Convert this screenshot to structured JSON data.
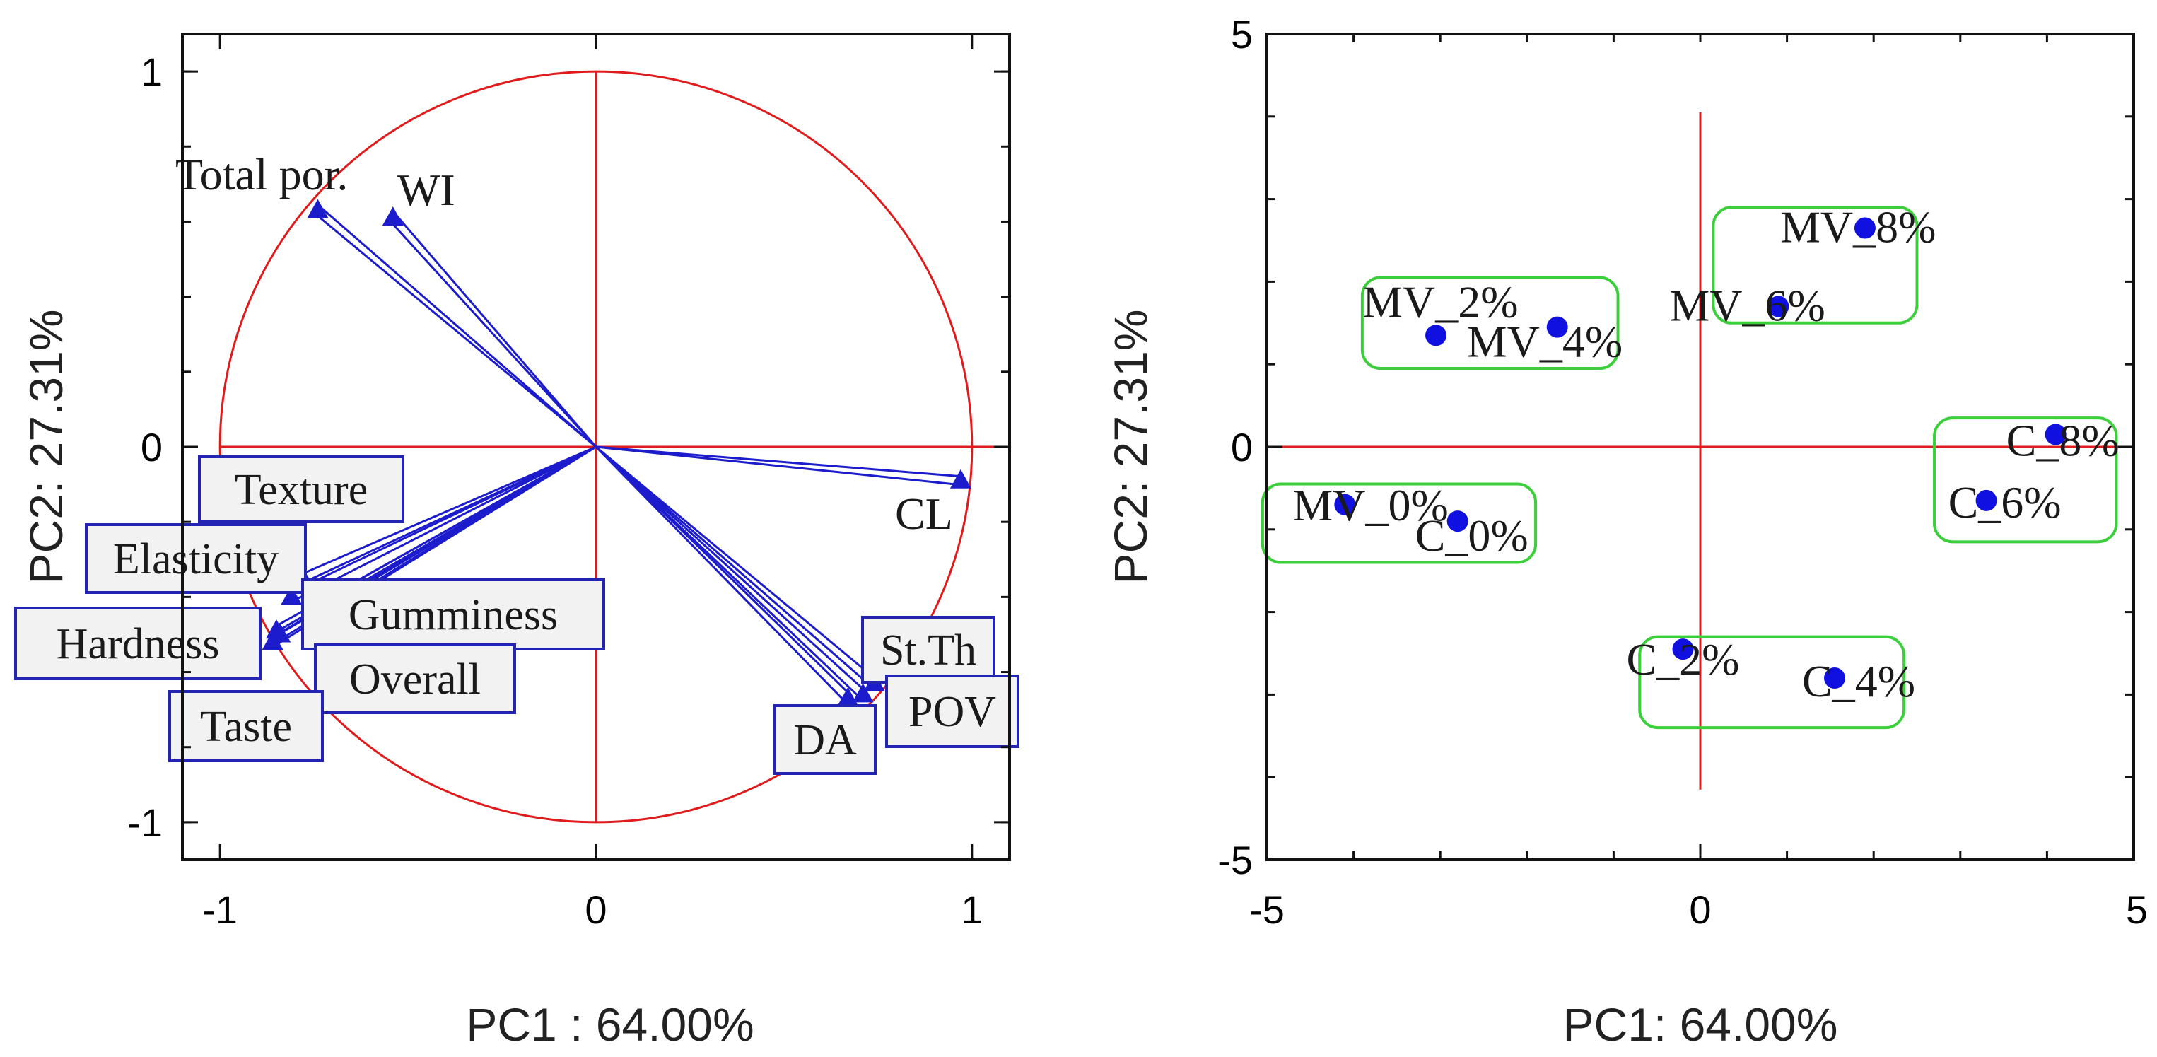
{
  "chart_data": [
    {
      "type": "scatter",
      "subtype": "pca-loadings",
      "title": "",
      "xlabel": "PC1 : 64.00%",
      "ylabel": "PC2: 27.31%",
      "xlim": [
        -1.1,
        1.1
      ],
      "ylim": [
        -1.1,
        1.1
      ],
      "xticks": [
        -1,
        0,
        1
      ],
      "yticks": [
        -1,
        0,
        1
      ],
      "unit_circle": true,
      "colors": {
        "axis": "#111111",
        "circle": "#e01b1b",
        "zero_lines": "#e01b1b",
        "vectors": "#1c1ccc",
        "box_fill": "#f2f2f2",
        "box_border": "#2323b4"
      },
      "loadings": [
        {
          "name": "Total por.",
          "x": -0.74,
          "y": 0.63,
          "label_style": "plain"
        },
        {
          "name": "WI",
          "x": -0.54,
          "y": 0.61,
          "label_style": "plain"
        },
        {
          "name": "CL",
          "x": 0.97,
          "y": -0.09,
          "label_style": "plain"
        },
        {
          "name": "St.Th",
          "x": 0.74,
          "y": -0.63,
          "label_style": "box"
        },
        {
          "name": "POV",
          "x": 0.71,
          "y": -0.66,
          "label_style": "box"
        },
        {
          "name": "DA",
          "x": 0.67,
          "y": -0.67,
          "label_style": "box"
        },
        {
          "name": "Texture",
          "x": -0.78,
          "y": -0.35,
          "label_style": "box"
        },
        {
          "name": "Elasticity",
          "x": -0.81,
          "y": -0.4,
          "label_style": "box"
        },
        {
          "name": "Gumminess",
          "x": -0.76,
          "y": -0.44,
          "label_style": "box"
        },
        {
          "name": "Hardness",
          "x": -0.85,
          "y": -0.49,
          "label_style": "box"
        },
        {
          "name": "Overall",
          "x": -0.84,
          "y": -0.5,
          "label_style": "box"
        },
        {
          "name": "Taste",
          "x": -0.86,
          "y": -0.52,
          "label_style": "box"
        }
      ]
    },
    {
      "type": "scatter",
      "subtype": "pca-scores",
      "title": "",
      "xlabel": "PC1: 64.00%",
      "ylabel": "PC2: 27.31%",
      "xlim": [
        -5,
        5
      ],
      "ylim": [
        -5,
        5
      ],
      "xticks": [
        -5,
        0,
        5
      ],
      "yticks": [
        -5,
        0,
        5
      ],
      "colors": {
        "axis": "#111111",
        "zero_lines": "#e01b1b",
        "points": "#1010e0",
        "groups": "#3ccf3c"
      },
      "points": [
        {
          "name": "MV_0%",
          "x": -4.1,
          "y": -0.7
        },
        {
          "name": "C_0%",
          "x": -2.8,
          "y": -0.9
        },
        {
          "name": "MV_2%",
          "x": -3.05,
          "y": 1.35
        },
        {
          "name": "MV_4%",
          "x": -1.65,
          "y": 1.45
        },
        {
          "name": "MV_6%",
          "x": 0.9,
          "y": 1.7
        },
        {
          "name": "MV_8%",
          "x": 1.9,
          "y": 2.65
        },
        {
          "name": "C_2%",
          "x": -0.2,
          "y": -2.45
        },
        {
          "name": "C_4%",
          "x": 1.55,
          "y": -2.8
        },
        {
          "name": "C_6%",
          "x": 3.3,
          "y": -0.65
        },
        {
          "name": "C_8%",
          "x": 4.1,
          "y": 0.15
        }
      ],
      "groups": [
        {
          "members": [
            "MV_0%",
            "C_0%"
          ],
          "x_range": [
            -5.05,
            -1.9
          ],
          "y_range": [
            -1.4,
            -0.45
          ]
        },
        {
          "members": [
            "MV_2%",
            "MV_4%"
          ],
          "x_range": [
            -3.9,
            -0.95
          ],
          "y_range": [
            0.95,
            2.05
          ]
        },
        {
          "members": [
            "MV_6%",
            "MV_8%"
          ],
          "x_range": [
            0.15,
            2.5
          ],
          "y_range": [
            1.5,
            2.9
          ]
        },
        {
          "members": [
            "C_6%",
            "C_8%"
          ],
          "x_range": [
            2.7,
            4.8
          ],
          "y_range": [
            -1.15,
            0.35
          ]
        },
        {
          "members": [
            "C_2%",
            "C_4%"
          ],
          "x_range": [
            -0.7,
            2.35
          ],
          "y_range": [
            -3.4,
            -2.3
          ]
        }
      ]
    }
  ]
}
